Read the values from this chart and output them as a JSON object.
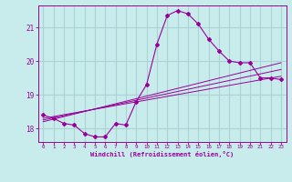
{
  "background_color": "#c8ecec",
  "grid_color": "#aad4d4",
  "line_color": "#990099",
  "marker_color": "#990099",
  "xlabel": "Windchill (Refroidissement éolien,°C)",
  "xlabel_color": "#990099",
  "tick_color": "#990099",
  "xlim": [
    -0.5,
    23.5
  ],
  "ylim": [
    17.6,
    21.65
  ],
  "yticks": [
    18,
    19,
    20,
    21
  ],
  "xticks": [
    0,
    1,
    2,
    3,
    4,
    5,
    6,
    7,
    8,
    9,
    10,
    11,
    12,
    13,
    14,
    15,
    16,
    17,
    18,
    19,
    20,
    21,
    22,
    23
  ],
  "curve1_x": [
    0,
    1,
    2,
    3,
    4,
    5,
    6,
    7,
    8,
    9,
    10,
    11,
    12,
    13,
    14,
    15,
    16,
    17,
    18,
    19,
    20,
    21,
    22,
    23
  ],
  "curve1_y": [
    18.4,
    18.3,
    18.15,
    18.1,
    17.85,
    17.75,
    17.75,
    18.15,
    18.1,
    18.8,
    19.3,
    20.5,
    21.35,
    21.5,
    21.4,
    21.1,
    20.65,
    20.3,
    20.0,
    19.95,
    19.95,
    19.5,
    19.5,
    19.45
  ],
  "line2_x": [
    0,
    23
  ],
  "line2_y": [
    18.3,
    19.55
  ],
  "line3_x": [
    0,
    23
  ],
  "line3_y": [
    18.25,
    19.75
  ],
  "line4_x": [
    0,
    23
  ],
  "line4_y": [
    18.2,
    19.95
  ]
}
